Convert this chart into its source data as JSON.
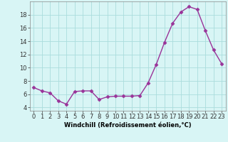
{
  "x": [
    0,
    1,
    2,
    3,
    4,
    5,
    6,
    7,
    8,
    9,
    10,
    11,
    12,
    13,
    14,
    15,
    16,
    17,
    18,
    19,
    20,
    21,
    22,
    23
  ],
  "y": [
    7.0,
    6.5,
    6.2,
    5.0,
    4.5,
    6.4,
    6.5,
    6.5,
    5.2,
    5.6,
    5.7,
    5.7,
    5.7,
    5.8,
    7.7,
    10.5,
    13.8,
    16.7,
    18.4,
    19.2,
    18.8,
    15.6,
    12.7,
    10.6
  ],
  "line_color": "#993399",
  "marker": "D",
  "markersize": 2.5,
  "linewidth": 1.0,
  "bg_color": "#d8f5f5",
  "grid_color": "#aadddd",
  "xlabel": "Windchill (Refroidissement éolien,°C)",
  "xlim": [
    -0.5,
    23.5
  ],
  "ylim": [
    3.5,
    20.0
  ],
  "xticks": [
    0,
    1,
    2,
    3,
    4,
    5,
    6,
    7,
    8,
    9,
    10,
    11,
    12,
    13,
    14,
    15,
    16,
    17,
    18,
    19,
    20,
    21,
    22,
    23
  ],
  "yticks": [
    4,
    6,
    8,
    10,
    12,
    14,
    16,
    18
  ],
  "tick_fontsize": 6,
  "xlabel_fontsize": 6
}
